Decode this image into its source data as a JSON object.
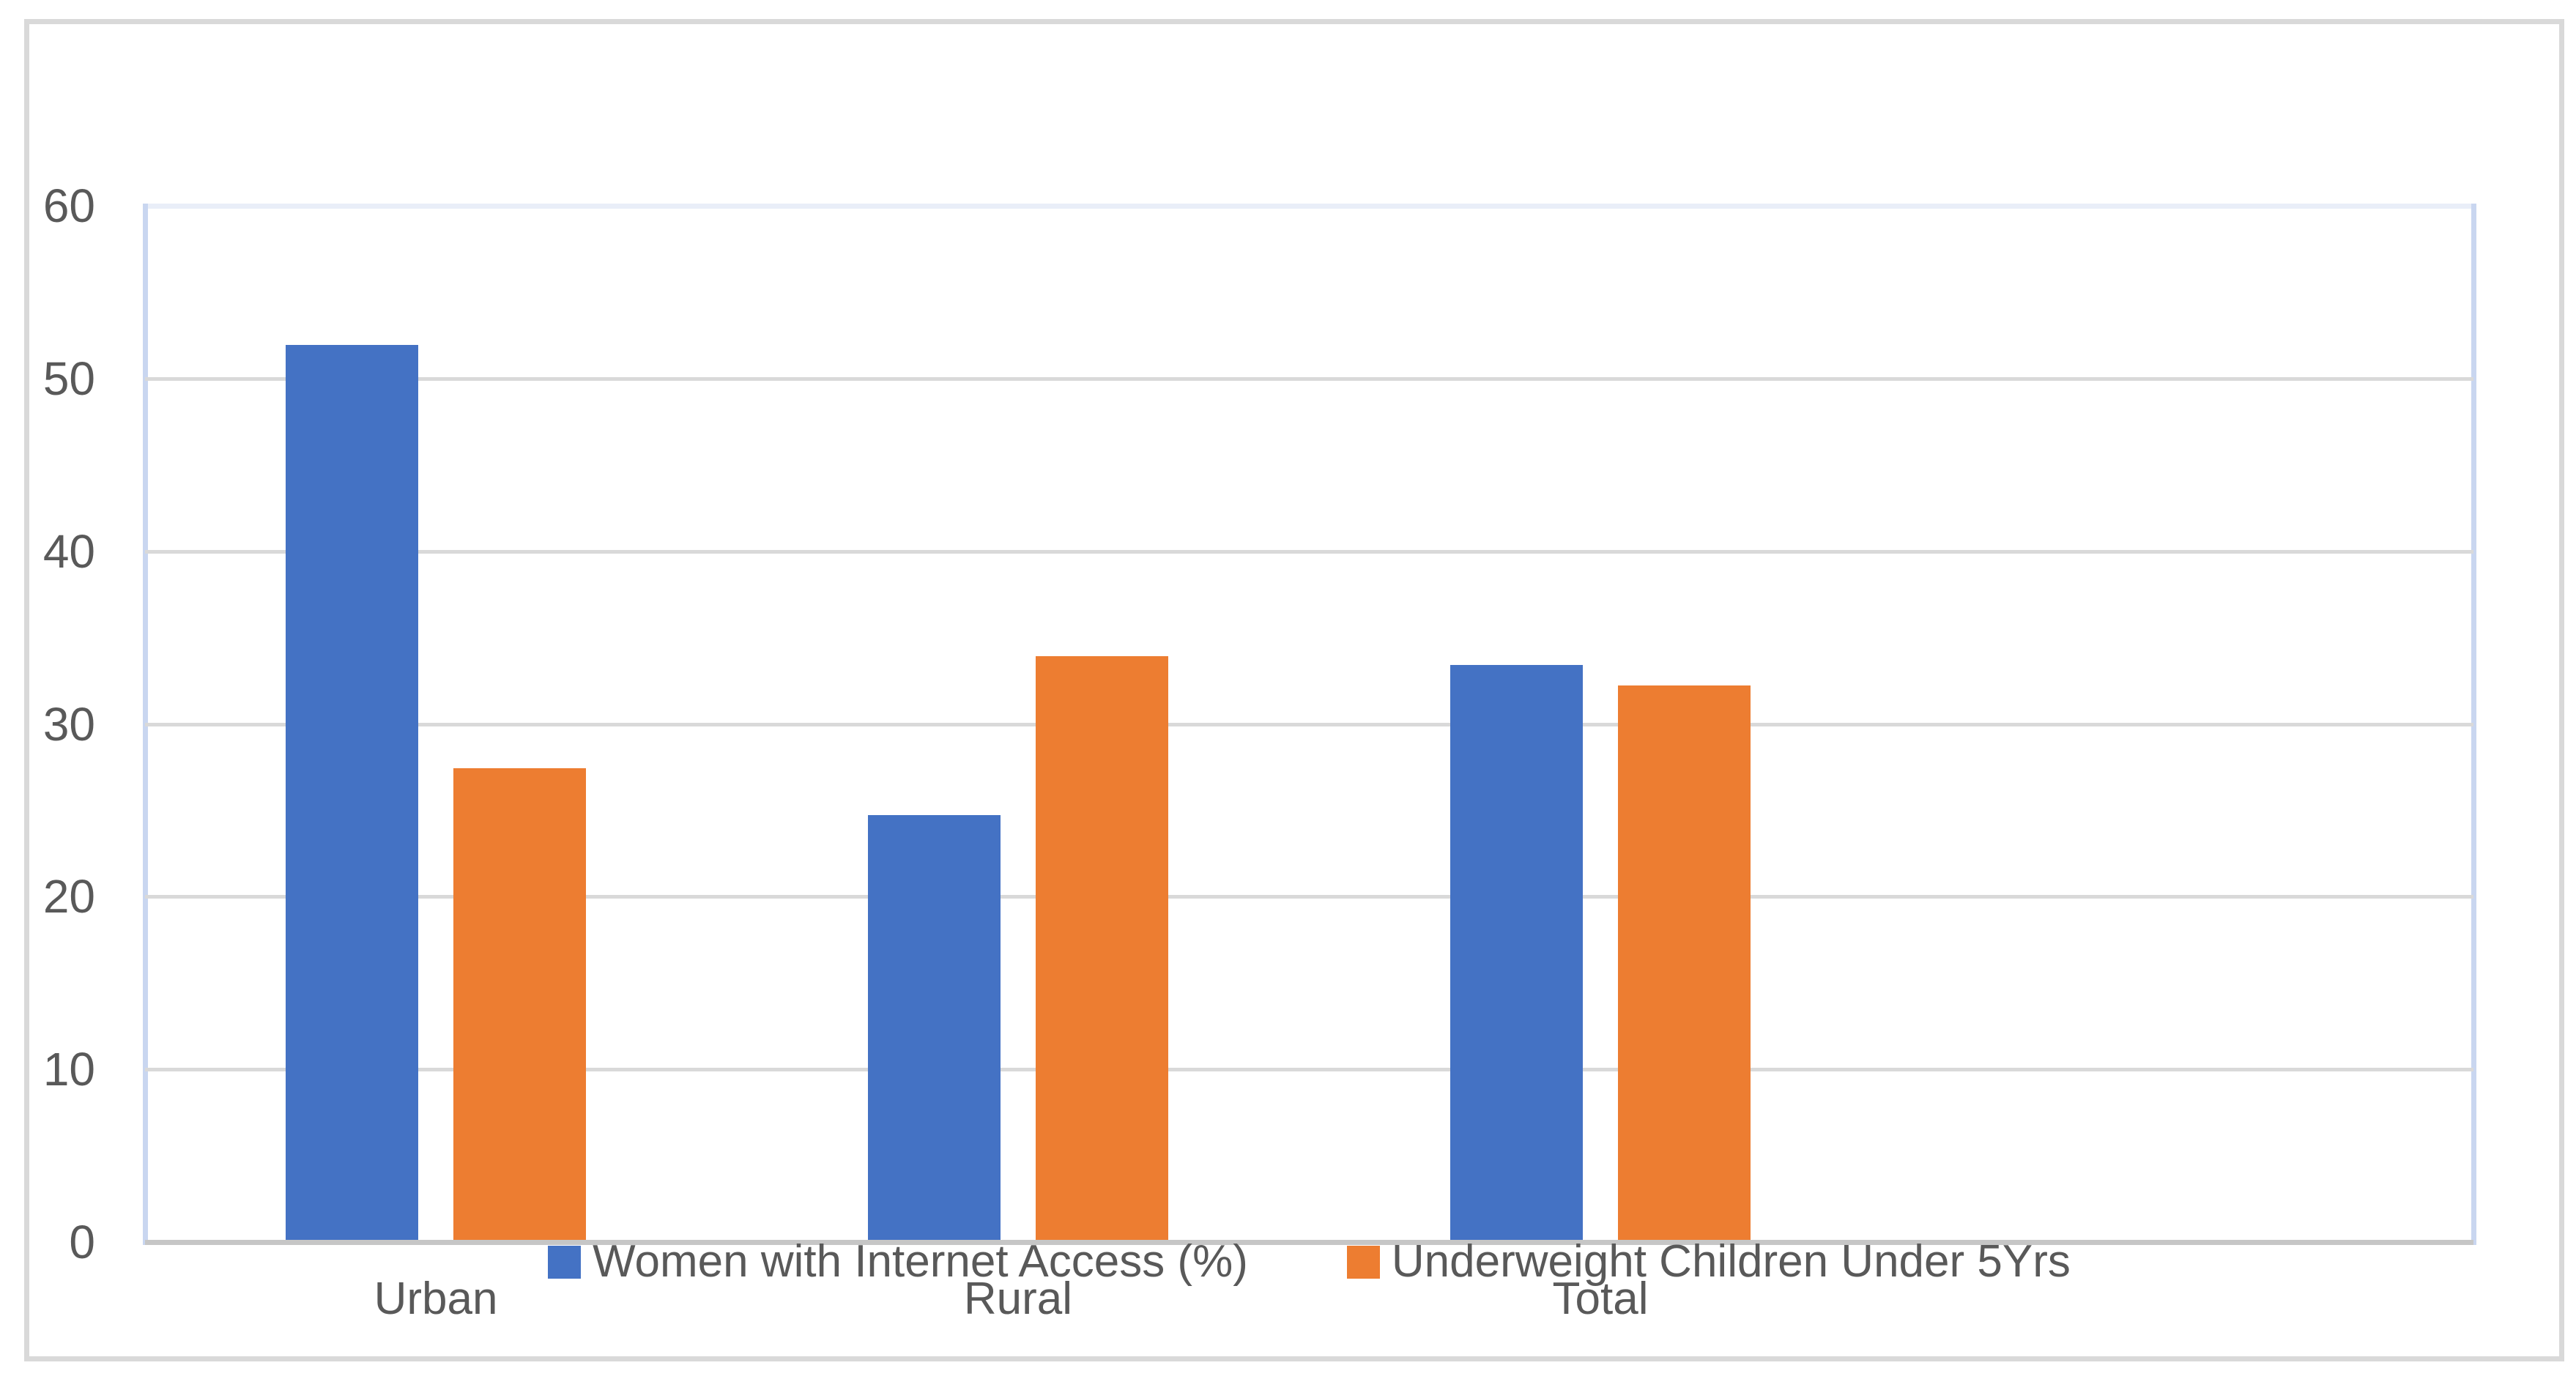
{
  "chart_data": {
    "type": "bar",
    "title": "",
    "xlabel": "",
    "ylabel": "",
    "categories": [
      "Urban",
      "Rural",
      "Total"
    ],
    "series": [
      {
        "name": "Women with Internet Access (%)",
        "color": "#4472C4",
        "values": [
          51.8,
          24.6,
          33.3
        ]
      },
      {
        "name": "Underweight Children Under 5Yrs",
        "color": "#ED7D31",
        "values": [
          27.3,
          33.8,
          32.1
        ]
      }
    ],
    "ylim": [
      0,
      60
    ],
    "yticks": [
      0,
      10,
      20,
      30,
      40,
      50,
      60
    ],
    "grid": "horizontal-gridlines-on",
    "legend_position": "bottom-center",
    "axis_text_color": "#595959",
    "gridline_color": "#D9D9D9",
    "axis_line_color": "#C6C6C6",
    "chart_border_color": "#D9D9D9"
  }
}
